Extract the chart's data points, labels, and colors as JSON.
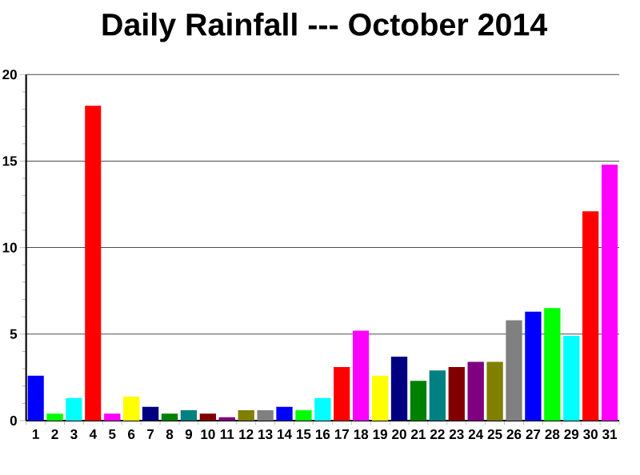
{
  "chart_data": {
    "type": "bar",
    "title": "Daily Rainfall --- October 2014",
    "categories": [
      "1",
      "2",
      "3",
      "4",
      "5",
      "6",
      "7",
      "8",
      "9",
      "10",
      "11",
      "12",
      "13",
      "14",
      "15",
      "16",
      "17",
      "18",
      "19",
      "20",
      "21",
      "22",
      "23",
      "24",
      "25",
      "26",
      "27",
      "28",
      "29",
      "30",
      "31"
    ],
    "values": [
      2.6,
      0.4,
      1.3,
      18.2,
      0.4,
      1.4,
      0.8,
      0.4,
      0.6,
      0.4,
      0.2,
      0.6,
      0.6,
      0.8,
      0.6,
      1.3,
      3.1,
      5.2,
      2.6,
      3.7,
      2.3,
      2.9,
      3.1,
      3.4,
      3.4,
      5.8,
      6.3,
      6.5,
      4.9,
      12.1,
      14.8
    ],
    "colors": [
      "#0000ff",
      "#00ff00",
      "#00ffff",
      "#ff0000",
      "#ff00ff",
      "#ffff00",
      "#000080",
      "#008000",
      "#008080",
      "#800000",
      "#800080",
      "#808000",
      "#808080",
      "#0000ff",
      "#00ff00",
      "#00ffff",
      "#ff0000",
      "#ff00ff",
      "#ffff00",
      "#000080",
      "#008000",
      "#008080",
      "#800000",
      "#800080",
      "#808000",
      "#808080",
      "#0000ff",
      "#00ff00",
      "#00ffff",
      "#ff0000",
      "#ff00ff"
    ],
    "ylim": [
      0,
      20
    ],
    "yticks": [
      0,
      5,
      10,
      15,
      20
    ],
    "grid": "y"
  }
}
